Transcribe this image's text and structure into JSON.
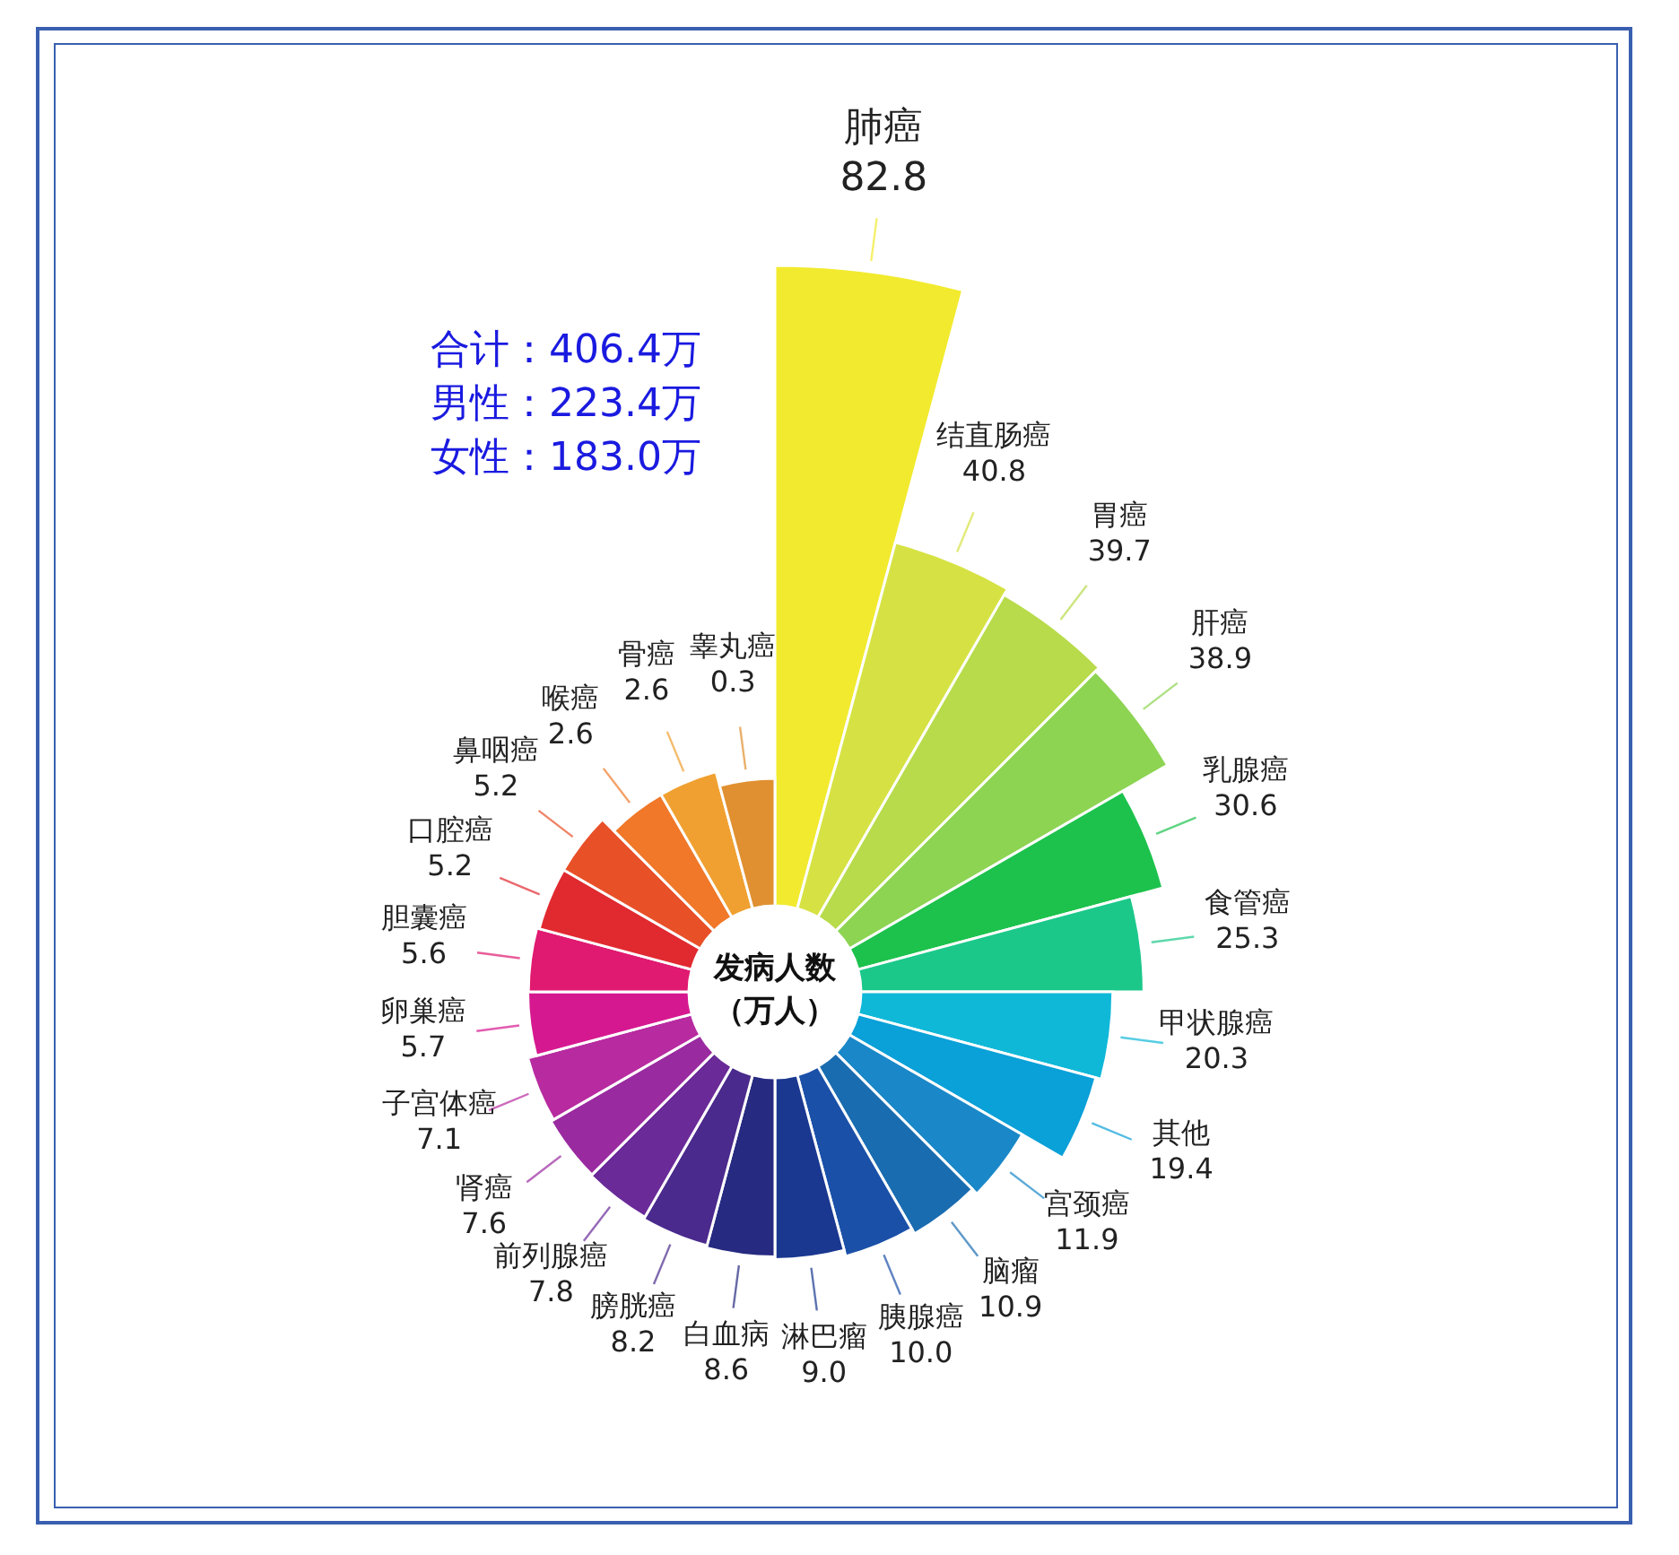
{
  "chart_data": {
    "type": "other",
    "title": "发病人数",
    "subtitle": "（万人）",
    "categories": [
      "肺癌",
      "结直肠癌",
      "胃癌",
      "肝癌",
      "乳腺癌",
      "食管癌",
      "甲状腺癌",
      "其他",
      "宫颈癌",
      "脑瘤",
      "胰腺癌",
      "淋巴瘤",
      "白血病",
      "膀胱癌",
      "前列腺癌",
      "肾癌",
      "子宫体癌",
      "卵巢癌",
      "胆囊癌",
      "口腔癌",
      "鼻咽癌",
      "喉癌",
      "骨癌",
      "睾丸癌"
    ],
    "values": [
      82.8,
      40.8,
      39.7,
      38.9,
      30.6,
      25.3,
      20.3,
      19.4,
      11.9,
      10.9,
      10.0,
      9.0,
      8.6,
      8.2,
      7.8,
      7.6,
      7.1,
      5.7,
      5.6,
      5.2,
      5.2,
      2.6,
      2.6,
      0.3
    ],
    "colors": [
      "#f2ea2e",
      "#d6e243",
      "#b7db4a",
      "#8dd452",
      "#1cc24c",
      "#1bc88a",
      "#10b8d8",
      "#0aa0d8",
      "#1a88c8",
      "#1a6cb0",
      "#1a50a8",
      "#1a3890",
      "#262a80",
      "#4a2a8c",
      "#6a2a98",
      "#9a2aa0",
      "#b82aa0",
      "#d61890",
      "#e01a70",
      "#e02a30",
      "#e85028",
      "#f07828",
      "#f0a030",
      "#e09030"
    ],
    "value_labels": [
      "82.8",
      "40.8",
      "39.7",
      "38.9",
      "30.6",
      "25.3",
      "20.3",
      "19.4",
      "11.9",
      "10.9",
      "10.0",
      "9.0",
      "8.6",
      "8.2",
      "7.8",
      "7.6",
      "7.1",
      "5.7",
      "5.6",
      "5.2",
      "5.2",
      "2.6",
      "2.6",
      "0.3"
    ],
    "annotations": [
      "合计：406.4万",
      "男性：223.4万",
      "女性：183.0万"
    ]
  }
}
